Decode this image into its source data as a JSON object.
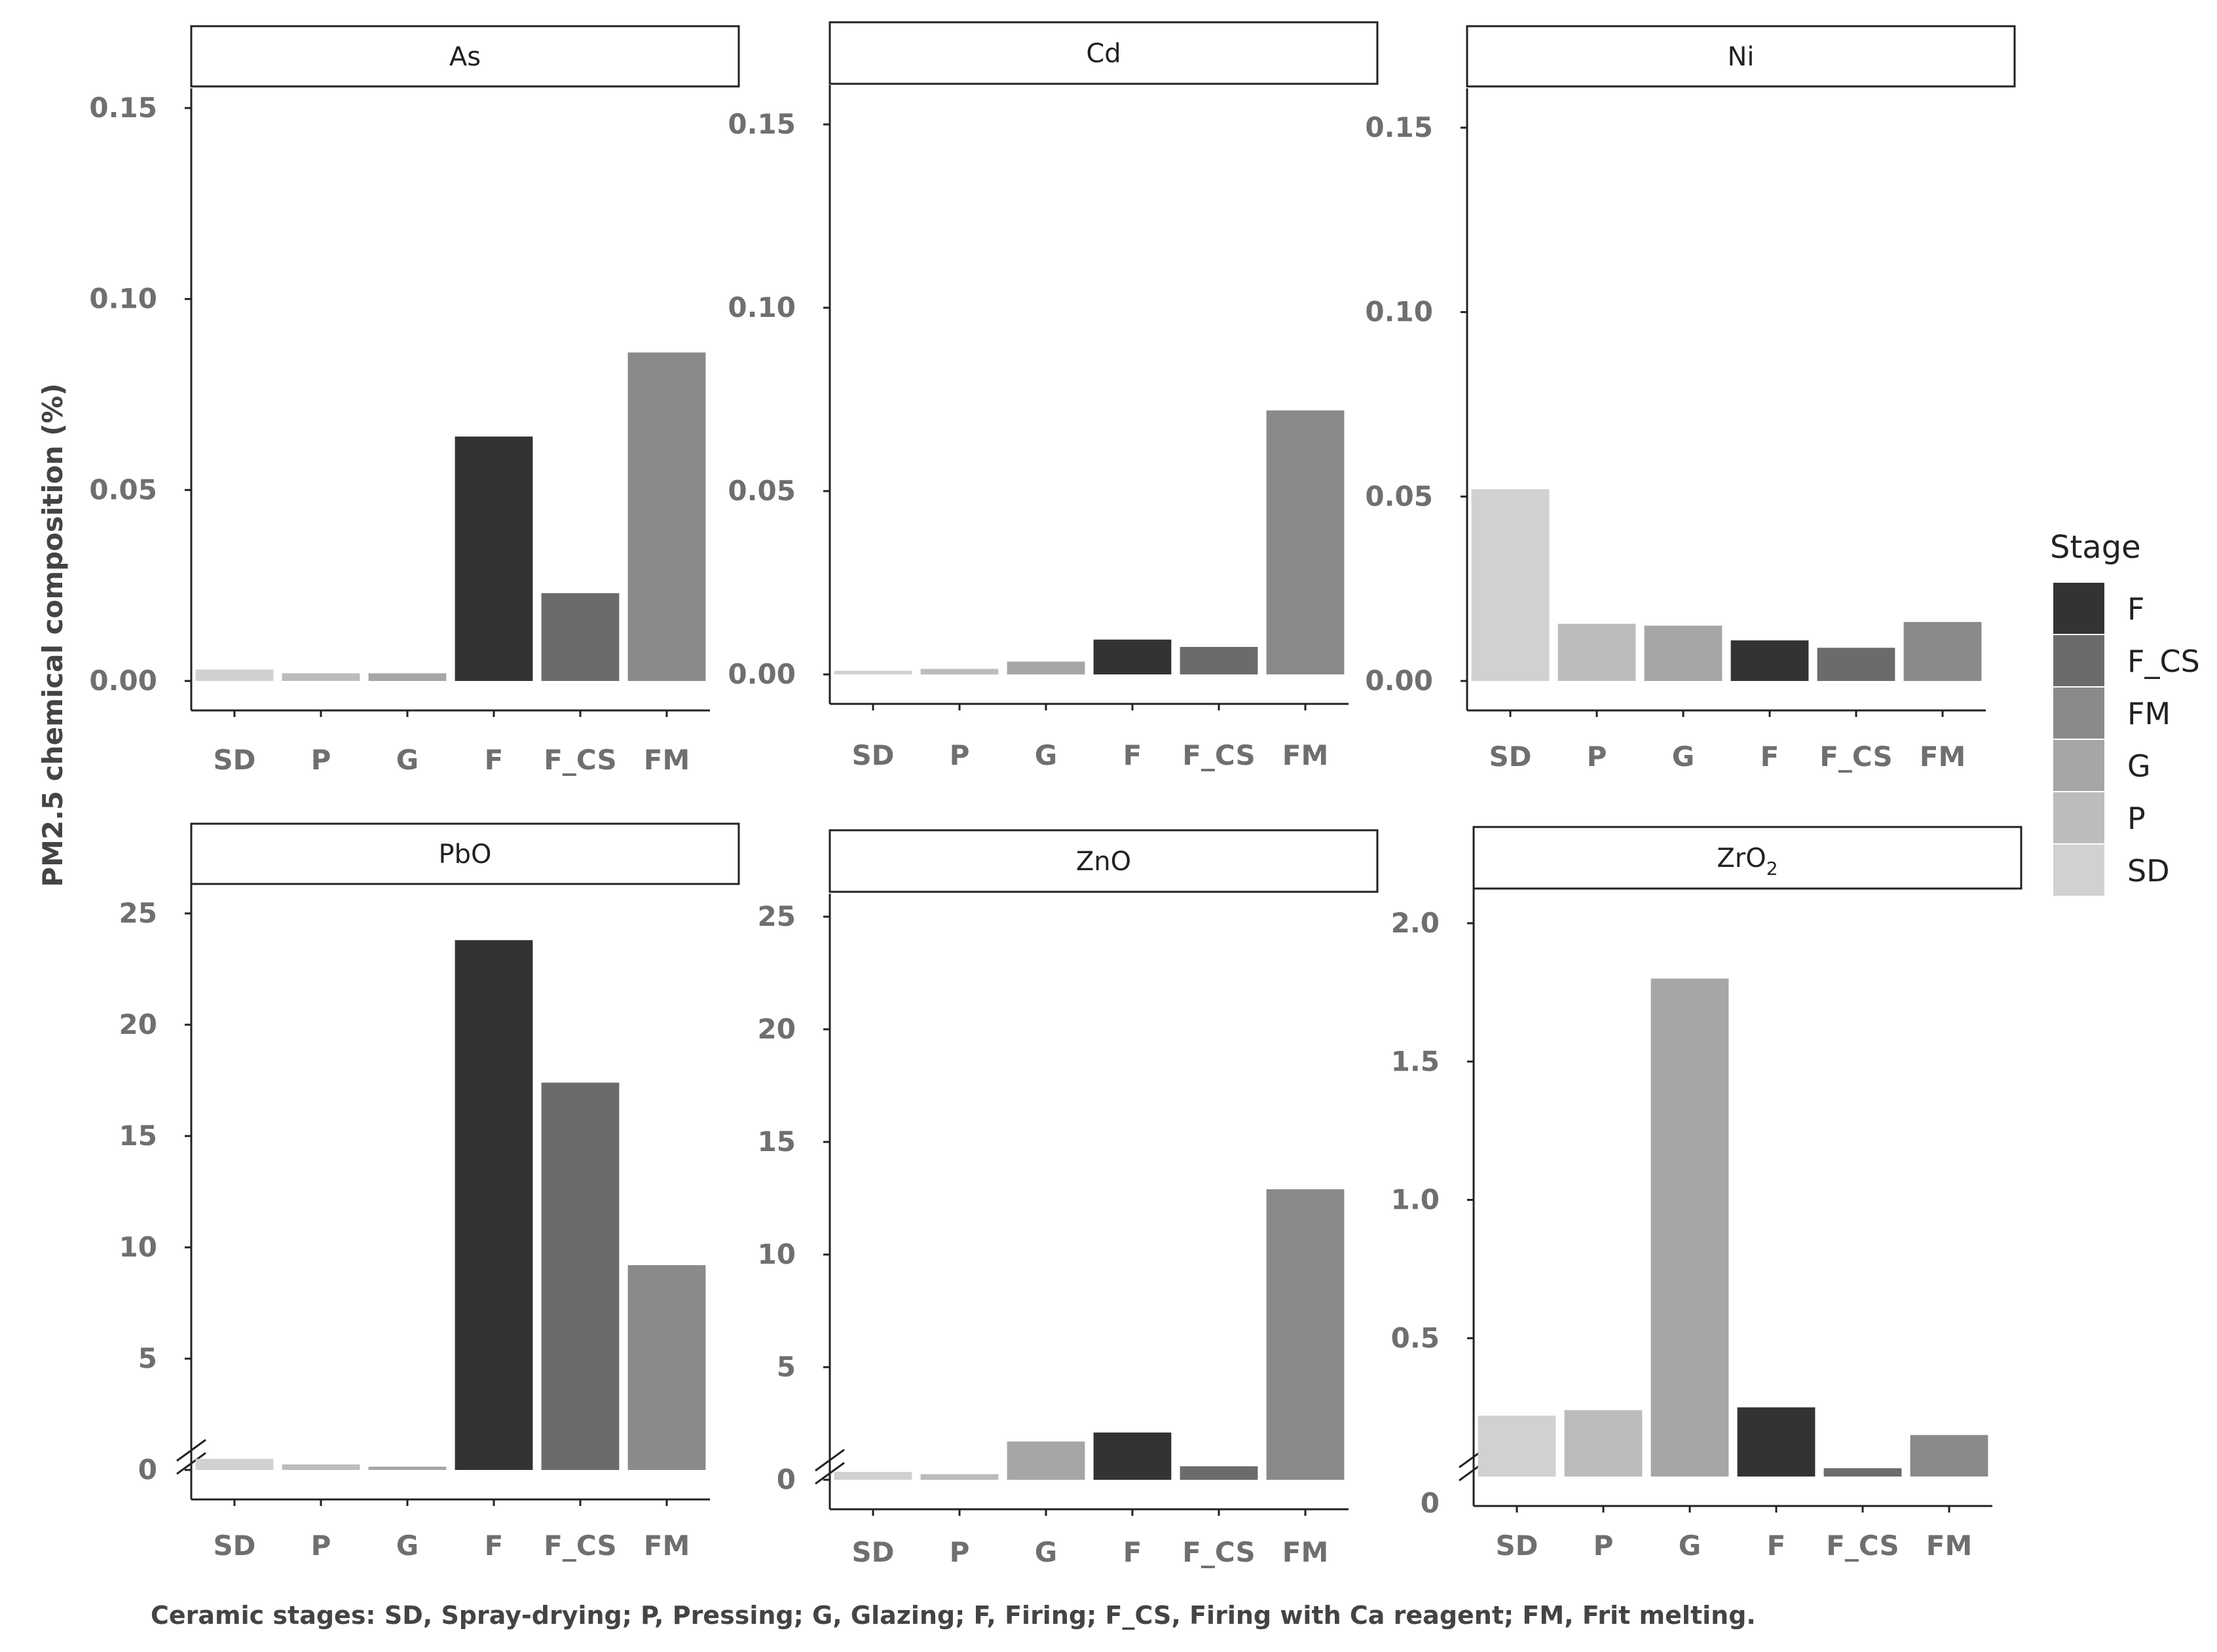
{
  "chart_data": [
    {
      "type": "bar",
      "title": "As",
      "title_main": "As",
      "title_sub": "",
      "categories": [
        "SD",
        "P",
        "G",
        "F",
        "F_CS",
        "FM"
      ],
      "values": [
        0.003,
        0.002,
        0.002,
        0.064,
        0.023,
        0.086
      ],
      "yticks": [
        0.0,
        0.05,
        0.1,
        0.15
      ],
      "ytick_labels": [
        "0.00",
        "0.05",
        "0.10",
        "0.15"
      ],
      "ylim": [
        0,
        0.155
      ],
      "axis_break": false
    },
    {
      "type": "bar",
      "title": "Cd",
      "title_main": "Cd",
      "title_sub": "",
      "categories": [
        "SD",
        "P",
        "G",
        "F",
        "F_CS",
        "FM"
      ],
      "values": [
        0.001,
        0.0015,
        0.0035,
        0.0095,
        0.0075,
        0.072
      ],
      "yticks": [
        0.0,
        0.05,
        0.1,
        0.15
      ],
      "ytick_labels": [
        "0.00",
        "0.05",
        "0.10",
        "0.15"
      ],
      "ylim": [
        0,
        0.165
      ],
      "axis_break": false
    },
    {
      "type": "bar",
      "title": "Ni",
      "title_main": "Ni",
      "title_sub": "",
      "categories": [
        "SD",
        "P",
        "G",
        "F",
        "F_CS",
        "FM"
      ],
      "values": [
        0.052,
        0.0155,
        0.015,
        0.011,
        0.009,
        0.016
      ],
      "yticks": [
        0.0,
        0.05,
        0.1,
        0.15
      ],
      "ytick_labels": [
        "0.00",
        "0.05",
        "0.10",
        "0.15"
      ],
      "ylim": [
        0,
        0.16
      ],
      "axis_break": false
    },
    {
      "type": "bar",
      "title": "PbO",
      "title_main": "PbO",
      "title_sub": "",
      "categories": [
        "SD",
        "P",
        "G",
        "F",
        "F_CS",
        "FM"
      ],
      "values": [
        0.5,
        0.25,
        0.15,
        23.8,
        17.4,
        9.2
      ],
      "yticks": [
        0,
        5,
        10,
        15,
        20,
        25
      ],
      "ytick_labels": [
        "0",
        "5",
        "10",
        "15",
        "20",
        "25"
      ],
      "ylim": [
        0,
        25.8
      ],
      "axis_break": true
    },
    {
      "type": "bar",
      "title": "ZnO",
      "title_main": "ZnO",
      "title_sub": "",
      "categories": [
        "SD",
        "P",
        "G",
        "F",
        "F_CS",
        "FM"
      ],
      "values": [
        0.35,
        0.25,
        1.7,
        2.1,
        0.6,
        12.9
      ],
      "yticks": [
        0,
        5,
        10,
        15,
        20,
        25
      ],
      "ytick_labels": [
        "0",
        "5",
        "10",
        "15",
        "20",
        "25"
      ],
      "ylim": [
        0,
        25.8
      ],
      "axis_break": true
    },
    {
      "type": "bar",
      "title": "ZrO2",
      "title_main": "ZrO",
      "title_sub": "2",
      "categories": [
        "SD",
        "P",
        "G",
        "F",
        "F_CS",
        "FM"
      ],
      "values": [
        0.22,
        0.24,
        1.8,
        0.25,
        0.03,
        0.15
      ],
      "yticks": [
        0.5,
        1.0,
        1.5,
        2.0
      ],
      "ytick_labels": [
        "0.5",
        "1.0",
        "1.5",
        "2.0"
      ],
      "ylim": [
        0,
        2.02
      ],
      "axis_break": true
    }
  ],
  "shared": {
    "ylabel": "PM2.5 chemical composition (%)",
    "zero_label": "0",
    "caption": "Ceramic stages: SD, Spray-drying; P, Pressing; G, Glazing; F, Firing; F_CS, Firing with Ca reagent; FM, Frit melting."
  },
  "legend": {
    "title": "Stage",
    "items": [
      {
        "label": "F",
        "color": "#333333"
      },
      {
        "label": "F_CS",
        "color": "#6b6b6b"
      },
      {
        "label": "FM",
        "color": "#8a8a8a"
      },
      {
        "label": "G",
        "color": "#a6a6a6"
      },
      {
        "label": "P",
        "color": "#bcbcbc"
      },
      {
        "label": "SD",
        "color": "#d1d1d1"
      }
    ]
  },
  "stage_colors": {
    "SD": "#d1d1d1",
    "P": "#bcbcbc",
    "G": "#a6a6a6",
    "F": "#333333",
    "F_CS": "#6b6b6b",
    "FM": "#8a8a8a"
  }
}
